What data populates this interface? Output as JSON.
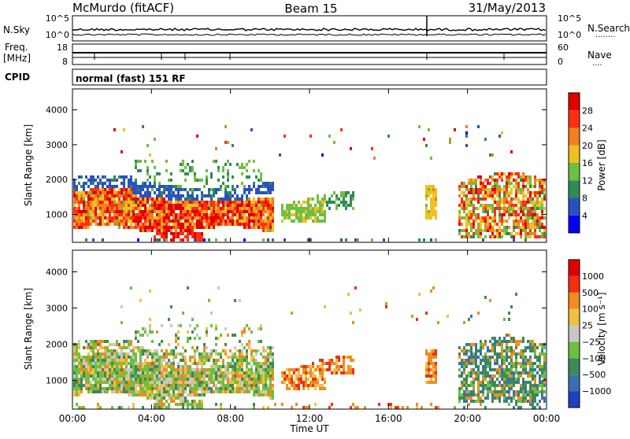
{
  "header": {
    "station": "McMurdo (fitACF)",
    "beam": "Beam 15",
    "date": "31/May/2013"
  },
  "params": {
    "nsky_label": "N.Sky",
    "nsearch_label": "N.Search",
    "freq_label_1": "Freq.",
    "freq_label_2": "[MHz]",
    "nave_label": "Nave",
    "cpid_label": "CPID",
    "cpid_text": "normal (fast) 151 RF",
    "nsky_ticks": [
      "10^5",
      "10^0"
    ],
    "nsearch_ticks": [
      "10^5",
      "10^0"
    ],
    "freq_ticks": [
      "18",
      "8"
    ],
    "nave_ticks": [
      "60",
      "0"
    ]
  },
  "chart_data": [
    {
      "type": "heatmap",
      "name": "power",
      "ylabel": "Slant Range [km]",
      "yticks": [
        1000,
        2000,
        3000,
        4000
      ],
      "ylim": [
        200,
        4600
      ],
      "xlim": [
        0,
        24
      ],
      "colorbar": {
        "label": "Power [dB]",
        "ticks": [
          "28",
          "24",
          "20",
          "16",
          "12",
          "8",
          "4"
        ],
        "colors": [
          "#0000ff",
          "#2a52be",
          "#2e8b57",
          "#6fbf40",
          "#f0c020",
          "#f08020",
          "#ff3010",
          "#e00000"
        ]
      }
    },
    {
      "type": "heatmap",
      "name": "velocity",
      "ylabel": "Slant Range [km]",
      "yticks": [
        1000,
        2000,
        3000,
        4000
      ],
      "ylim": [
        200,
        4600
      ],
      "xlim": [
        0,
        24
      ],
      "xticks": [
        "00:00",
        "04:00",
        "08:00",
        "12:00",
        "16:00",
        "20:00",
        "00:00"
      ],
      "xlabel": "Time UT",
      "colorbar": {
        "label": "Velocity [m s⁻¹]",
        "ticks": [
          "1000",
          "500",
          "100",
          "25",
          "−25",
          "−100",
          "−500",
          "−1000"
        ],
        "colors": [
          "#2040c0",
          "#3a70b0",
          "#3c8a5a",
          "#6cc040",
          "#c8c8c8",
          "#f0c040",
          "#f08c20",
          "#f03010",
          "#e00000"
        ]
      }
    }
  ]
}
